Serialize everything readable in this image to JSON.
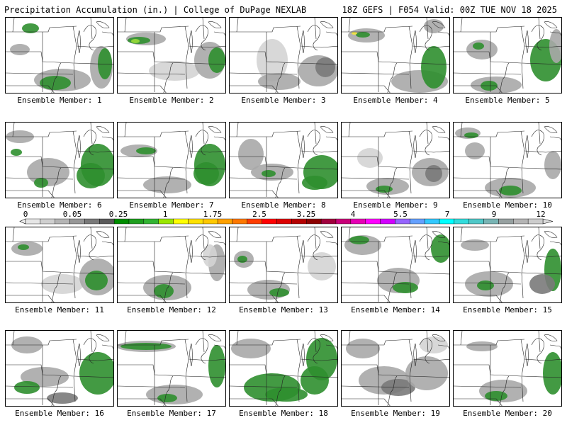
{
  "header": {
    "left_title": "Precipitation Accumulation (in.) | College of DuPage NEXLAB",
    "right_title": "18Z GEFS | F054 Valid: 00Z TUE NOV 18 2025"
  },
  "colorbar": {
    "labels": [
      "0",
      "0.05",
      "0.25",
      "1",
      "1.75",
      "2.5",
      "3.25",
      "4",
      "5.5",
      "7",
      "9",
      "12"
    ],
    "colors": [
      "#e6e6e6",
      "#cfcfcf",
      "#b4b4b4",
      "#969696",
      "#787878",
      "#5a5a5a",
      "#008c00",
      "#1e9e1e",
      "#32b432",
      "#99e600",
      "#ffff00",
      "#ffe100",
      "#ffc800",
      "#ffa000",
      "#ff7800",
      "#ff3c00",
      "#ff0000",
      "#dc0000",
      "#b40000",
      "#8c0000",
      "#a0003c",
      "#c80078",
      "#e600b4",
      "#ff00ff",
      "#d200ff",
      "#9664ff",
      "#64a0ff",
      "#32c8ff",
      "#00ffff",
      "#32dcdc",
      "#50c8c8",
      "#78b4b4",
      "#96a0a0",
      "#b4b4b4",
      "#cccccc"
    ],
    "fill_colors": {
      "light": "#d4d4d4",
      "mid": "#a8a8a8",
      "dark": "#7a7a7a",
      "green": "#2f8f2f",
      "lime": "#9adb3a",
      "yellow": "#f2e640"
    }
  },
  "members": [
    {
      "label": "Ensemble Member: 1"
    },
    {
      "label": "Ensemble Member: 2"
    },
    {
      "label": "Ensemble Member: 3"
    },
    {
      "label": "Ensemble Member: 4"
    },
    {
      "label": "Ensemble Member: 5"
    },
    {
      "label": "Ensemble Member: 6"
    },
    {
      "label": "Ensemble Member: 7"
    },
    {
      "label": "Ensemble Member: 8"
    },
    {
      "label": "Ensemble Member: 9"
    },
    {
      "label": "Ensemble Member: 10"
    },
    {
      "label": "Ensemble Member: 11"
    },
    {
      "label": "Ensemble Member: 12"
    },
    {
      "label": "Ensemble Member: 13"
    },
    {
      "label": "Ensemble Member: 14"
    },
    {
      "label": "Ensemble Member: 15"
    },
    {
      "label": "Ensemble Member: 16"
    },
    {
      "label": "Ensemble Member: 17"
    },
    {
      "label": "Ensemble Member: 18"
    },
    {
      "label": "Ensemble Member: 19"
    },
    {
      "label": "Ensemble Member: 20"
    }
  ]
}
